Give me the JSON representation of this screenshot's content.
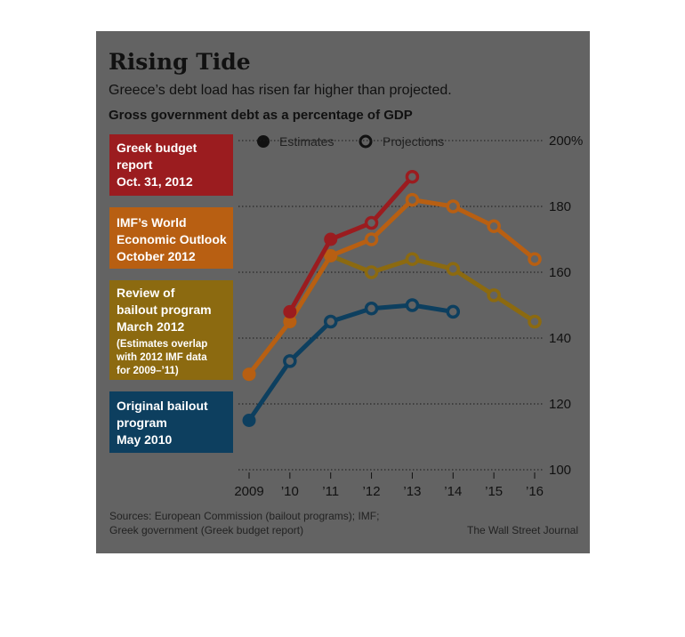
{
  "header": {
    "title": "Rising Tide",
    "subtitle": "Greece’s debt load has risen far higher than projected.",
    "heading": "Gross government debt as a percentage of GDP"
  },
  "legend": {
    "estimates": "Estimates",
    "projections": "Projections"
  },
  "footer": {
    "sources_line1": "Sources: European Commission (bailout programs); IMF;",
    "sources_line2": "Greek government (Greek budget report)",
    "credit": "The Wall Street Journal"
  },
  "chart_data": {
    "type": "line",
    "title": "Rising Tide",
    "subtitle": "Greece’s debt load has risen far higher than projected.",
    "ylabel": "Gross government debt as a percentage of GDP",
    "xlabel": "",
    "x": [
      2009,
      2010,
      2011,
      2012,
      2013,
      2014,
      2015,
      2016
    ],
    "x_tick_labels": [
      "2009",
      "’10",
      "’11",
      "’12",
      "’13",
      "’14",
      "’15",
      "’16"
    ],
    "y_ticks": [
      100,
      120,
      140,
      160,
      180,
      200
    ],
    "y_tick_labels": [
      "100",
      "120",
      "140",
      "160",
      "180",
      "200%"
    ],
    "ylim": [
      100,
      200
    ],
    "grid": true,
    "legend_position": "top",
    "series": [
      {
        "name": "Greek budget report Oct. 31, 2012",
        "label_lines": [
          "Greek budget",
          "report",
          "Oct. 31, 2012"
        ],
        "color": "#9b1c1f",
        "points": [
          {
            "x": 2010,
            "y": 148,
            "kind": "estimate"
          },
          {
            "x": 2011,
            "y": 170,
            "kind": "estimate"
          },
          {
            "x": 2012,
            "y": 175,
            "kind": "projection"
          },
          {
            "x": 2013,
            "y": 189,
            "kind": "projection"
          }
        ]
      },
      {
        "name": "IMF’s World Economic Outlook October 2012",
        "label_lines": [
          "IMF’s World",
          "Economic Outlook",
          "October 2012"
        ],
        "color": "#b85f12",
        "points": [
          {
            "x": 2009,
            "y": 129,
            "kind": "estimate"
          },
          {
            "x": 2010,
            "y": 145,
            "kind": "estimate"
          },
          {
            "x": 2011,
            "y": 165,
            "kind": "estimate"
          },
          {
            "x": 2012,
            "y": 170,
            "kind": "projection"
          },
          {
            "x": 2013,
            "y": 182,
            "kind": "projection"
          },
          {
            "x": 2014,
            "y": 180,
            "kind": "projection"
          },
          {
            "x": 2015,
            "y": 174,
            "kind": "projection"
          },
          {
            "x": 2016,
            "y": 164,
            "kind": "projection"
          }
        ]
      },
      {
        "name": "Review of bailout program March 2012",
        "label_lines": [
          "Review of",
          "bailout program",
          "March 2012"
        ],
        "note_lines": [
          "(Estimates overlap",
          "with 2012 IMF data",
          "for 2009–’11)"
        ],
        "color": "#8c6a10",
        "points": [
          {
            "x": 2009,
            "y": 129,
            "kind": "estimate"
          },
          {
            "x": 2010,
            "y": 145,
            "kind": "estimate"
          },
          {
            "x": 2011,
            "y": 165,
            "kind": "estimate"
          },
          {
            "x": 2012,
            "y": 160,
            "kind": "projection"
          },
          {
            "x": 2013,
            "y": 164,
            "kind": "projection"
          },
          {
            "x": 2014,
            "y": 161,
            "kind": "projection"
          },
          {
            "x": 2015,
            "y": 153,
            "kind": "projection"
          },
          {
            "x": 2016,
            "y": 145,
            "kind": "projection"
          }
        ]
      },
      {
        "name": "Original bailout program May 2010",
        "label_lines": [
          "Original bailout",
          "program",
          "May 2010"
        ],
        "color": "#0d3f5f",
        "points": [
          {
            "x": 2009,
            "y": 115,
            "kind": "estimate"
          },
          {
            "x": 2010,
            "y": 133,
            "kind": "projection"
          },
          {
            "x": 2011,
            "y": 145,
            "kind": "projection"
          },
          {
            "x": 2012,
            "y": 149,
            "kind": "projection"
          },
          {
            "x": 2013,
            "y": 150,
            "kind": "projection"
          },
          {
            "x": 2014,
            "y": 148,
            "kind": "projection"
          }
        ]
      }
    ]
  },
  "colors": {
    "background": "#636363",
    "gridline": "#1a1a1a",
    "label_fill_1": "#9b1c1f",
    "label_fill_2": "#b85f12",
    "label_fill_3": "#8c6a10",
    "label_fill_4": "#0d3f5f"
  }
}
